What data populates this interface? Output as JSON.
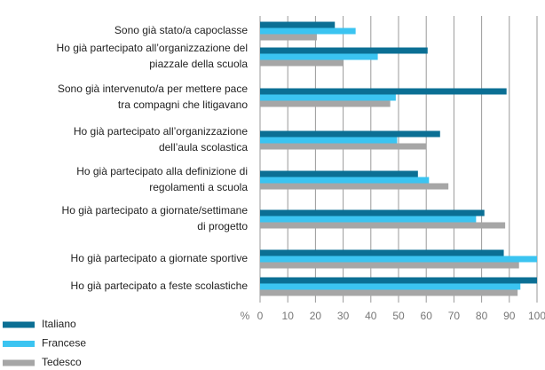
{
  "chart_data": {
    "type": "hbar",
    "categories": [
      "Sono già stato/a capoclasse",
      "Ho già partecipato all’organizzazione del\npiazzale della scuola",
      "Sono già intervenuto/a per mettere pace\ntra compagni che litigavano",
      "Ho già partecipato all’organizzazione\ndell’aula scolastica",
      "Ho già partecipato alla definizione di\nregolamenti a scuola",
      "Ho già partecipato a giornate/settimane\ndi progetto",
      "Ho già partecipato a giornate sportive",
      "Ho già partecipato a feste scolastiche"
    ],
    "series": [
      {
        "name": "Italiano",
        "color": "#0b6f94",
        "values": [
          27,
          60.5,
          89,
          65,
          57,
          81,
          88,
          100
        ]
      },
      {
        "name": "Francese",
        "color": "#3bc4f1",
        "values": [
          34.5,
          42.5,
          49,
          49.5,
          61,
          78,
          100,
          94
        ]
      },
      {
        "name": "Tedesco",
        "color": "#a6a6a6",
        "values": [
          20.5,
          30,
          47,
          60,
          68,
          88.5,
          93.5,
          93
        ]
      }
    ],
    "xlabel": "%",
    "xlim": [
      0,
      100
    ],
    "xticks": [
      0,
      10,
      20,
      30,
      40,
      50,
      60,
      70,
      80,
      90,
      100
    ],
    "grid": true,
    "legend": "bottom-left"
  }
}
